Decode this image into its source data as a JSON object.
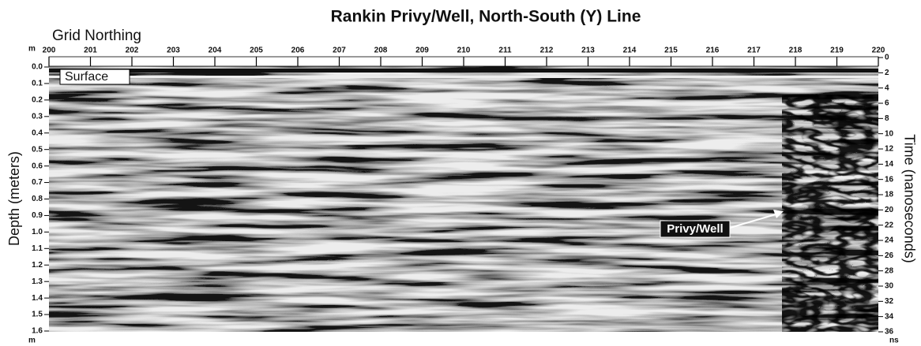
{
  "chart_data": {
    "type": "radargram",
    "title": "Rankin Privy/Well, North-South (Y) Line",
    "x_label": "Grid Northing",
    "y_label": "Depth (meters)",
    "y2_label": "Time (nanoseconds)",
    "x_unit": "m",
    "y_unit": "m",
    "y2_unit": "ns",
    "xlim": [
      200,
      220
    ],
    "xticks": [
      200,
      201,
      202,
      203,
      204,
      205,
      206,
      207,
      208,
      209,
      210,
      211,
      212,
      213,
      214,
      215,
      216,
      217,
      218,
      219,
      220
    ],
    "ylim": [
      0,
      1.6
    ],
    "yticks": [
      {
        "value": 0,
        "label": "0.0"
      },
      0.1,
      0.2,
      0.3,
      0.4,
      0.5,
      0.6,
      0.7,
      0.8,
      0.9,
      {
        "value": 1,
        "label": "1.0"
      },
      1.1,
      1.2,
      1.3,
      1.4,
      1.5,
      1.6
    ],
    "y2lim": [
      0,
      36
    ],
    "y2ticks": [
      0,
      2,
      4,
      6,
      8,
      10,
      12,
      14,
      16,
      18,
      20,
      22,
      24,
      26,
      28,
      30,
      32,
      34,
      36
    ],
    "annotations": [
      "Surface",
      "Privy/Well"
    ]
  }
}
